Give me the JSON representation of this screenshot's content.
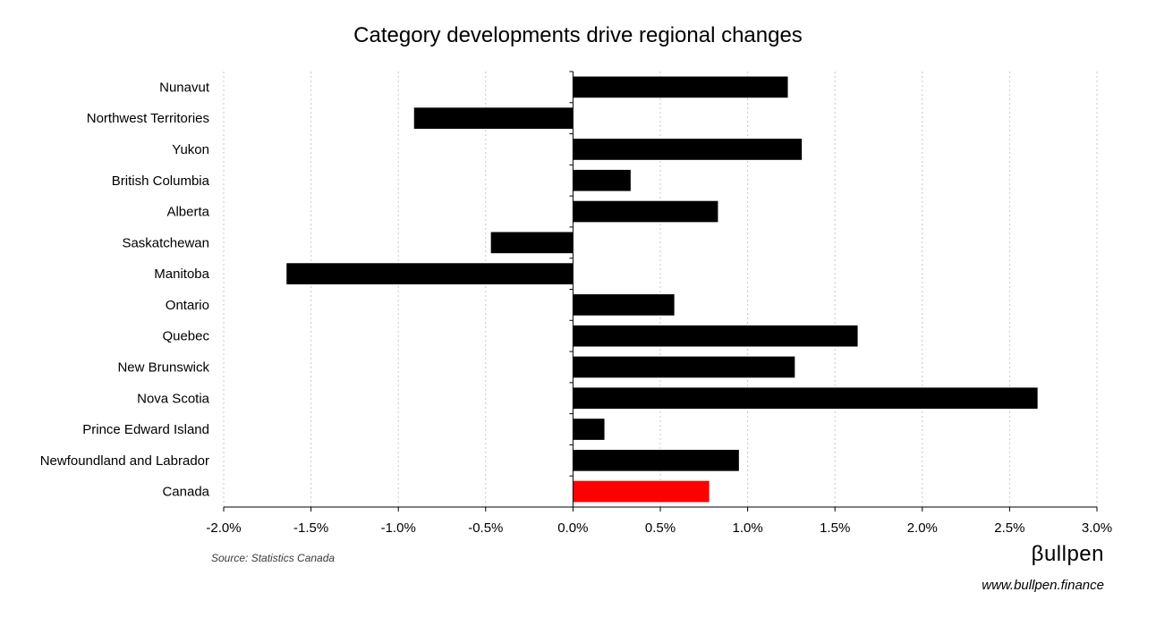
{
  "chart_data": {
    "type": "bar",
    "orientation": "horizontal",
    "title": "Category developments drive regional changes",
    "categories": [
      "Nunavut",
      "Northwest Territories",
      "Yukon",
      "British Columbia",
      "Alberta",
      "Saskatchewan",
      "Manitoba",
      "Ontario",
      "Quebec",
      "New Brunswick",
      "Nova Scotia",
      "Prince Edward Island",
      "Newfoundland and Labrador",
      "Canada"
    ],
    "values": [
      1.23,
      -0.91,
      1.31,
      0.33,
      0.83,
      -0.47,
      -1.64,
      0.58,
      1.63,
      1.27,
      2.66,
      0.18,
      0.95,
      0.78
    ],
    "xlim": [
      -2.0,
      3.0
    ],
    "xticks": [
      -2.0,
      -1.5,
      -1.0,
      -0.5,
      0.0,
      0.5,
      1.0,
      1.5,
      2.0,
      2.5,
      3.0
    ],
    "xtick_labels": [
      "-2.0%",
      "-1.5%",
      "-1.0%",
      "-0.5%",
      "0.0%",
      "0.5%",
      "1.0%",
      "1.5%",
      "2.0%",
      "2.5%",
      "3.0%"
    ],
    "xlabel": "",
    "ylabel": "",
    "grid": "vertical dotted",
    "legend": "none",
    "colors": {
      "bar": "#000000",
      "highlight": "#ff0000",
      "highlight_category": "Canada",
      "grid": "#c8c8c8",
      "axis": "#000000"
    }
  },
  "source_note": "Source: Statistics Canada",
  "brand": {
    "logo_text": "βullpen",
    "url": "www.bullpen.finance"
  }
}
